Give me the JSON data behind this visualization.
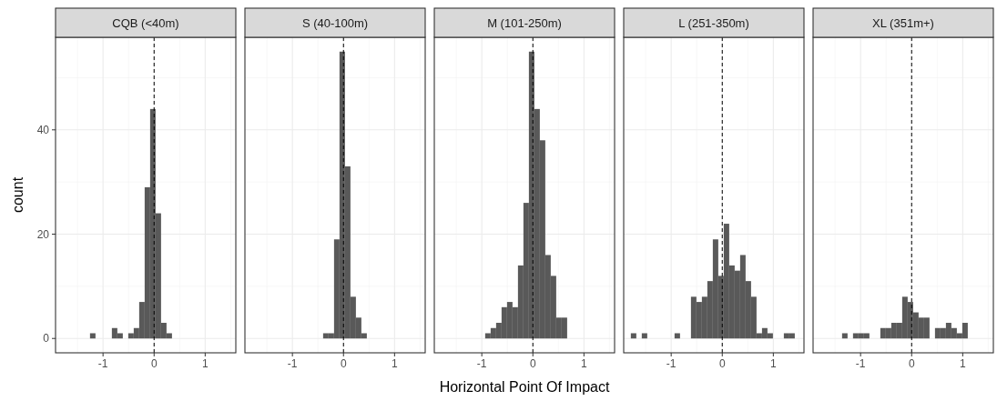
{
  "chart_data": [
    {
      "type": "histogram",
      "title": "CQB (<40m)",
      "ylabel": "count",
      "color": "#595959",
      "bins": [
        -1.79,
        -1.683,
        -1.576,
        -1.469,
        -1.362,
        -1.255,
        -1.148,
        -1.041,
        -0.934,
        -0.827,
        -0.72,
        -0.613,
        -0.506,
        -0.399,
        -0.292,
        -0.185,
        -0.078,
        0.029,
        0.136,
        0.243,
        0.35,
        0.457,
        0.564,
        0.671,
        0.778,
        0.885,
        0.992,
        1.099,
        1.206,
        1.313,
        1.42
      ],
      "values": [
        0,
        0,
        0,
        0,
        0,
        1,
        0,
        0,
        0,
        2,
        1,
        0,
        1,
        2,
        7,
        29,
        44,
        24,
        3,
        1,
        0,
        0,
        0,
        0,
        0,
        0,
        0,
        0,
        0,
        0
      ],
      "xlim": [
        -1.93,
        1.6
      ],
      "xticks": [
        -1,
        0,
        1
      ],
      "ylim": [
        -2.75,
        57.75
      ],
      "yticks": [
        0,
        20,
        40
      ],
      "grid": true,
      "ref_lines": [
        {
          "axis": "x",
          "value": 0,
          "line_style": "dashed",
          "color": "#000000"
        }
      ]
    },
    {
      "type": "histogram",
      "title": "S (40-100m)",
      "color": "#595959",
      "bins": [
        -1.79,
        -1.683,
        -1.576,
        -1.469,
        -1.362,
        -1.255,
        -1.148,
        -1.041,
        -0.934,
        -0.827,
        -0.72,
        -0.613,
        -0.506,
        -0.399,
        -0.292,
        -0.185,
        -0.078,
        0.029,
        0.136,
        0.243,
        0.35,
        0.457,
        0.564,
        0.671,
        0.778,
        0.885,
        0.992,
        1.099,
        1.206,
        1.313,
        1.42
      ],
      "values": [
        0,
        0,
        0,
        0,
        0,
        0,
        0,
        0,
        0,
        0,
        0,
        0,
        0,
        1,
        1,
        19,
        55,
        33,
        8,
        4,
        1,
        0,
        0,
        0,
        0,
        0,
        0,
        0,
        0,
        0
      ],
      "xlim": [
        -1.93,
        1.6
      ],
      "xticks": [
        -1,
        0,
        1
      ],
      "ylim": [
        -2.75,
        57.75
      ],
      "yticks": [
        0,
        20,
        40
      ],
      "grid": true,
      "tick_labels": "x",
      "ref_lines": [
        {
          "axis": "x",
          "value": 0,
          "line_style": "dashed",
          "color": "#000000"
        }
      ]
    },
    {
      "type": "histogram",
      "title": "M (101-250m)",
      "xlabel": "Horizontal Point Of Impact",
      "color": "#595959",
      "bins": [
        -1.79,
        -1.683,
        -1.576,
        -1.469,
        -1.362,
        -1.255,
        -1.148,
        -1.041,
        -0.934,
        -0.827,
        -0.72,
        -0.613,
        -0.506,
        -0.399,
        -0.292,
        -0.185,
        -0.078,
        0.029,
        0.136,
        0.243,
        0.35,
        0.457,
        0.564,
        0.671,
        0.778,
        0.885,
        0.992,
        1.099,
        1.206,
        1.313,
        1.42
      ],
      "values": [
        0,
        0,
        0,
        0,
        0,
        0,
        0,
        0,
        1,
        2,
        3,
        6,
        7,
        6,
        14,
        26,
        55,
        44,
        38,
        16,
        12,
        4,
        4,
        0,
        0,
        0,
        0,
        0,
        0,
        0
      ],
      "xlim": [
        -1.93,
        1.6
      ],
      "xticks": [
        -1,
        0,
        1
      ],
      "ylim": [
        -2.75,
        57.75
      ],
      "yticks": [
        0,
        20,
        40
      ],
      "grid": true,
      "tick_labels": "x",
      "ref_lines": [
        {
          "axis": "x",
          "value": 0,
          "line_style": "dashed",
          "color": "#000000"
        }
      ]
    },
    {
      "type": "histogram",
      "title": "L (251-350m)",
      "color": "#595959",
      "bins": [
        -1.79,
        -1.683,
        -1.576,
        -1.469,
        -1.362,
        -1.255,
        -1.148,
        -1.041,
        -0.934,
        -0.827,
        -0.72,
        -0.613,
        -0.506,
        -0.399,
        -0.292,
        -0.185,
        -0.078,
        0.029,
        0.136,
        0.243,
        0.35,
        0.457,
        0.564,
        0.671,
        0.778,
        0.885,
        0.992,
        1.099,
        1.206,
        1.313,
        1.42
      ],
      "values": [
        1,
        0,
        1,
        0,
        0,
        0,
        0,
        0,
        1,
        0,
        0,
        8,
        7,
        8,
        11,
        19,
        12,
        22,
        14,
        13,
        16,
        11,
        8,
        1,
        2,
        1,
        0,
        0,
        1,
        1
      ],
      "xlim": [
        -1.93,
        1.6
      ],
      "xticks": [
        -1,
        0,
        1
      ],
      "ylim": [
        -2.75,
        57.75
      ],
      "yticks": [
        0,
        20,
        40
      ],
      "grid": true,
      "tick_labels": "x",
      "ref_lines": [
        {
          "axis": "x",
          "value": 0,
          "line_style": "dashed",
          "color": "#000000"
        }
      ]
    },
    {
      "type": "histogram",
      "title": "XL (351m+)",
      "color": "#595959",
      "bins": [
        -1.79,
        -1.683,
        -1.576,
        -1.469,
        -1.362,
        -1.255,
        -1.148,
        -1.041,
        -0.934,
        -0.827,
        -0.72,
        -0.613,
        -0.506,
        -0.399,
        -0.292,
        -0.185,
        -0.078,
        0.029,
        0.136,
        0.243,
        0.35,
        0.457,
        0.564,
        0.671,
        0.778,
        0.885,
        0.992,
        1.099,
        1.206,
        1.313,
        1.42
      ],
      "values": [
        0,
        0,
        0,
        0,
        1,
        0,
        1,
        1,
        1,
        0,
        0,
        2,
        2,
        3,
        3,
        8,
        7,
        5,
        4,
        4,
        0,
        2,
        2,
        3,
        2,
        1,
        3,
        0,
        0,
        0
      ],
      "xlim": [
        -1.93,
        1.6
      ],
      "xticks": [
        -1,
        0,
        1
      ],
      "ylim": [
        -2.75,
        57.75
      ],
      "yticks": [
        0,
        20,
        40
      ],
      "grid": true,
      "tick_labels": "x",
      "ref_lines": [
        {
          "axis": "x",
          "value": 0,
          "line_style": "dashed",
          "color": "#000000"
        }
      ]
    }
  ]
}
